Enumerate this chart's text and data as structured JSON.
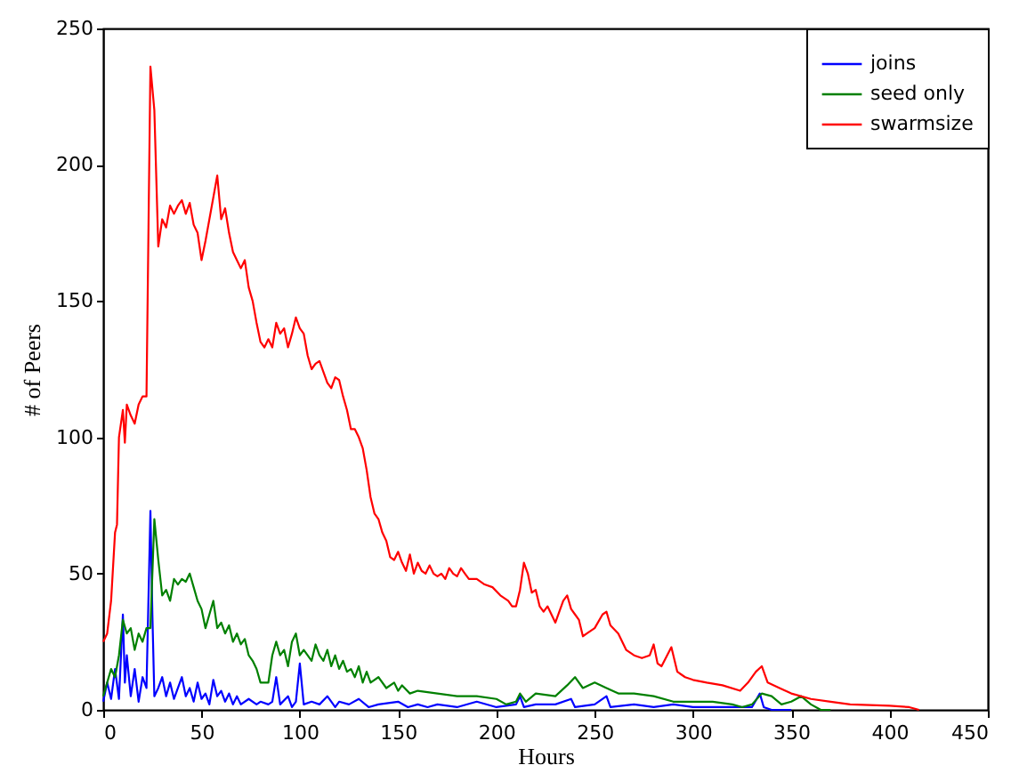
{
  "chart_data": {
    "type": "line",
    "xlabel": "Hours",
    "ylabel": "# of Peers",
    "xlim": [
      0,
      450
    ],
    "xticks": [
      0,
      50,
      100,
      150,
      200,
      250,
      300,
      350,
      400,
      450
    ],
    "ylim": [
      0,
      250
    ],
    "yticks": [
      0,
      50,
      100,
      150,
      200,
      250
    ],
    "grid": false,
    "legend": "top right",
    "marker": "none",
    "line_style": "solid",
    "series": [
      {
        "name": "joins",
        "color": "#0000ff",
        "x": [
          0,
          2,
          4,
          6,
          8,
          10,
          11,
          12,
          14,
          16,
          18,
          20,
          22,
          24,
          25,
          26,
          28,
          30,
          32,
          34,
          36,
          38,
          40,
          42,
          44,
          46,
          48,
          50,
          52,
          54,
          56,
          58,
          60,
          62,
          64,
          66,
          68,
          70,
          74,
          78,
          80,
          84,
          86,
          88,
          90,
          94,
          96,
          98,
          100,
          102,
          106,
          110,
          114,
          118,
          120,
          125,
          130,
          135,
          140,
          150,
          155,
          160,
          165,
          170,
          180,
          190,
          200,
          210,
          212,
          214,
          220,
          230,
          238,
          240,
          250,
          256,
          258,
          270,
          280,
          290,
          300,
          320,
          330,
          334,
          336,
          340,
          350
        ],
        "values": [
          3,
          10,
          4,
          15,
          4,
          35,
          10,
          20,
          5,
          15,
          3,
          12,
          8,
          73,
          35,
          5,
          8,
          12,
          5,
          10,
          4,
          8,
          12,
          5,
          8,
          3,
          10,
          4,
          6,
          2,
          11,
          5,
          7,
          3,
          6,
          2,
          5,
          2,
          4,
          2,
          3,
          2,
          3,
          12,
          2,
          5,
          1,
          3,
          17,
          2,
          3,
          2,
          5,
          1,
          3,
          2,
          4,
          1,
          2,
          3,
          1,
          2,
          1,
          2,
          1,
          3,
          1,
          2,
          5,
          1,
          2,
          2,
          4,
          1,
          2,
          5,
          1,
          2,
          1,
          2,
          1,
          1,
          1,
          6,
          1,
          0,
          0
        ]
      },
      {
        "name": "seed only",
        "color": "#008000",
        "x": [
          0,
          2,
          4,
          6,
          8,
          10,
          12,
          14,
          16,
          18,
          20,
          22,
          24,
          26,
          28,
          30,
          32,
          34,
          36,
          38,
          40,
          42,
          44,
          46,
          48,
          50,
          52,
          54,
          56,
          58,
          60,
          62,
          64,
          66,
          68,
          70,
          72,
          74,
          76,
          78,
          80,
          84,
          86,
          88,
          90,
          92,
          94,
          96,
          98,
          100,
          102,
          106,
          108,
          110,
          112,
          114,
          116,
          118,
          120,
          122,
          124,
          126,
          128,
          130,
          132,
          134,
          136,
          140,
          144,
          148,
          150,
          152,
          156,
          160,
          170,
          180,
          190,
          200,
          205,
          210,
          212,
          215,
          220,
          230,
          236,
          240,
          244,
          250,
          256,
          262,
          270,
          280,
          290,
          300,
          310,
          320,
          325,
          330,
          335,
          340,
          345,
          350,
          355,
          360,
          365,
          370
        ],
        "values": [
          5,
          10,
          15,
          12,
          20,
          33,
          28,
          30,
          22,
          28,
          25,
          30,
          30,
          70,
          55,
          42,
          44,
          40,
          48,
          46,
          48,
          47,
          50,
          45,
          40,
          37,
          30,
          35,
          40,
          30,
          32,
          28,
          31,
          25,
          28,
          24,
          26,
          20,
          18,
          15,
          10,
          10,
          20,
          25,
          20,
          22,
          16,
          25,
          28,
          20,
          22,
          18,
          24,
          20,
          18,
          22,
          16,
          20,
          15,
          18,
          14,
          15,
          12,
          16,
          10,
          14,
          10,
          12,
          8,
          10,
          7,
          9,
          6,
          7,
          6,
          5,
          5,
          4,
          2,
          3,
          6,
          3,
          6,
          5,
          9,
          12,
          8,
          10,
          8,
          6,
          6,
          5,
          3,
          3,
          3,
          2,
          1,
          2,
          6,
          5,
          2,
          3,
          5,
          2,
          0,
          0
        ]
      },
      {
        "name": "swarmsize",
        "color": "#ff0000",
        "x": [
          0,
          2,
          4,
          6,
          7,
          8,
          10,
          11,
          12,
          14,
          16,
          18,
          20,
          22,
          24,
          26,
          28,
          30,
          32,
          34,
          36,
          38,
          40,
          42,
          44,
          46,
          48,
          50,
          52,
          54,
          56,
          58,
          60,
          62,
          64,
          66,
          68,
          70,
          72,
          74,
          76,
          78,
          80,
          82,
          84,
          86,
          88,
          90,
          92,
          94,
          96,
          98,
          100,
          102,
          104,
          106,
          108,
          110,
          112,
          114,
          116,
          118,
          120,
          122,
          124,
          126,
          128,
          130,
          132,
          134,
          136,
          138,
          140,
          142,
          144,
          146,
          148,
          150,
          152,
          154,
          156,
          158,
          160,
          162,
          164,
          166,
          168,
          170,
          172,
          174,
          176,
          178,
          180,
          182,
          184,
          186,
          190,
          194,
          198,
          202,
          206,
          208,
          210,
          212,
          214,
          216,
          218,
          220,
          222,
          224,
          226,
          228,
          230,
          234,
          236,
          238,
          240,
          242,
          244,
          246,
          250,
          254,
          256,
          258,
          262,
          266,
          270,
          274,
          278,
          280,
          282,
          284,
          289,
          292,
          296,
          300,
          307,
          315,
          324,
          328,
          332,
          335,
          338,
          344,
          350,
          360,
          370,
          380,
          400,
          410,
          415
        ],
        "values": [
          25,
          28,
          40,
          65,
          68,
          100,
          110,
          98,
          112,
          108,
          105,
          112,
          115,
          115,
          236,
          220,
          170,
          180,
          177,
          185,
          182,
          185,
          187,
          182,
          186,
          178,
          175,
          165,
          172,
          180,
          188,
          196,
          180,
          184,
          175,
          168,
          165,
          162,
          165,
          155,
          150,
          142,
          135,
          133,
          136,
          133,
          142,
          138,
          140,
          133,
          138,
          144,
          140,
          138,
          130,
          125,
          127,
          128,
          124,
          120,
          118,
          122,
          121,
          115,
          110,
          103,
          103,
          100,
          96,
          88,
          78,
          72,
          70,
          65,
          62,
          56,
          55,
          58,
          54,
          51,
          57,
          50,
          54,
          51,
          50,
          53,
          50,
          49,
          50,
          48,
          52,
          50,
          49,
          52,
          50,
          48,
          48,
          46,
          45,
          42,
          40,
          38,
          38,
          44,
          54,
          50,
          43,
          44,
          38,
          36,
          38,
          35,
          32,
          40,
          42,
          37,
          35,
          33,
          27,
          28,
          30,
          35,
          36,
          31,
          28,
          22,
          20,
          19,
          20,
          24,
          17,
          16,
          23,
          14,
          12,
          11,
          10,
          9,
          7,
          10,
          14,
          16,
          10,
          8,
          6,
          4,
          3,
          2,
          1.5,
          1,
          0
        ]
      }
    ]
  }
}
